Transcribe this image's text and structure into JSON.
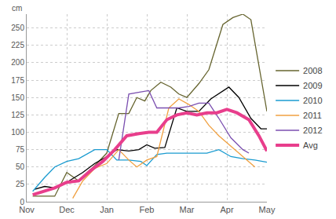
{
  "chart_data": {
    "type": "line",
    "y_label": "cm",
    "xlim": [
      0,
      6
    ],
    "xticks": [
      {
        "value": 0,
        "label": "Nov"
      },
      {
        "value": 1,
        "label": "Dec"
      },
      {
        "value": 2,
        "label": "Jan"
      },
      {
        "value": 3,
        "label": "Feb"
      },
      {
        "value": 4,
        "label": "Mar"
      },
      {
        "value": 5,
        "label": "Apr"
      },
      {
        "value": 6,
        "label": "May"
      }
    ],
    "ylim": [
      0,
      270
    ],
    "yticks": [
      0,
      25,
      50,
      75,
      100,
      125,
      150,
      175,
      200,
      225,
      250
    ],
    "grid": true,
    "legend": "right",
    "series": [
      {
        "name": "2008",
        "color": "#66642f",
        "line_style": "solid",
        "x": [
          0.15,
          0.7,
          1.0,
          1.3,
          1.7,
          2.0,
          2.3,
          2.55,
          2.75,
          2.95,
          3.1,
          3.35,
          3.6,
          3.8,
          4.0,
          4.3,
          4.55,
          4.9,
          5.15,
          5.4,
          5.6,
          6.0
        ],
        "values": [
          8,
          8,
          42,
          30,
          52,
          70,
          127,
          127,
          150,
          145,
          160,
          172,
          165,
          155,
          150,
          170,
          190,
          255,
          265,
          270,
          262,
          130
        ]
      },
      {
        "name": "2009",
        "color": "#000000",
        "line_style": "solid",
        "x": [
          0.2,
          0.45,
          0.7,
          1.0,
          1.4,
          1.7,
          2.0,
          2.25,
          2.55,
          2.8,
          3.0,
          3.2,
          3.45,
          3.75,
          4.0,
          4.3,
          4.6,
          5.05,
          5.3,
          5.6,
          5.85,
          6.0
        ],
        "values": [
          18,
          22,
          20,
          28,
          42,
          55,
          65,
          75,
          73,
          75,
          82,
          77,
          78,
          135,
          130,
          130,
          148,
          165,
          150,
          120,
          105,
          105
        ]
      },
      {
        "name": "2010",
        "color": "#1a9bd0",
        "line_style": "solid",
        "x": [
          0.15,
          0.45,
          0.7,
          1.0,
          1.3,
          1.7,
          2.0,
          2.25,
          2.55,
          2.85,
          3.0,
          3.25,
          3.5,
          3.8,
          4.2,
          4.5,
          4.8,
          5.1,
          5.4,
          5.7,
          6.0
        ],
        "values": [
          15,
          35,
          50,
          58,
          62,
          75,
          75,
          60,
          60,
          58,
          52,
          68,
          70,
          70,
          70,
          70,
          75,
          65,
          62,
          60,
          57
        ]
      },
      {
        "name": "2011",
        "color": "#f0a040",
        "line_style": "solid",
        "x": [
          1.15,
          1.4,
          1.7,
          2.0,
          2.3,
          2.55,
          2.75,
          3.0,
          3.25,
          3.55,
          3.8,
          4.05,
          4.3,
          4.55,
          4.8,
          5.1,
          5.4,
          5.7
        ],
        "values": [
          5,
          30,
          48,
          55,
          75,
          60,
          50,
          60,
          65,
          135,
          148,
          140,
          130,
          110,
          95,
          80,
          65,
          50
        ]
      },
      {
        "name": "2012",
        "color": "#7b4fb0",
        "line_style": "solid",
        "x": [
          2.3,
          2.55,
          2.85,
          3.05,
          3.25,
          3.55,
          3.8,
          4.05,
          4.3,
          4.55,
          4.8,
          5.1,
          5.4,
          5.55
        ],
        "values": [
          60,
          155,
          158,
          160,
          135,
          135,
          135,
          137,
          142,
          142,
          120,
          92,
          75,
          70
        ]
      },
      {
        "name": "Avg",
        "color": "#e83e8c",
        "line_style": "bold",
        "x": [
          0.15,
          0.45,
          0.7,
          1.0,
          1.3,
          1.6,
          1.9,
          2.2,
          2.5,
          2.8,
          3.05,
          3.25,
          3.5,
          3.75,
          4.0,
          4.25,
          4.5,
          4.75,
          5.0,
          5.25,
          5.55,
          5.8,
          6.0
        ],
        "values": [
          10,
          15,
          20,
          28,
          30,
          45,
          58,
          75,
          95,
          98,
          100,
          100,
          118,
          125,
          128,
          125,
          128,
          128,
          133,
          128,
          118,
          95,
          73
        ]
      }
    ]
  }
}
